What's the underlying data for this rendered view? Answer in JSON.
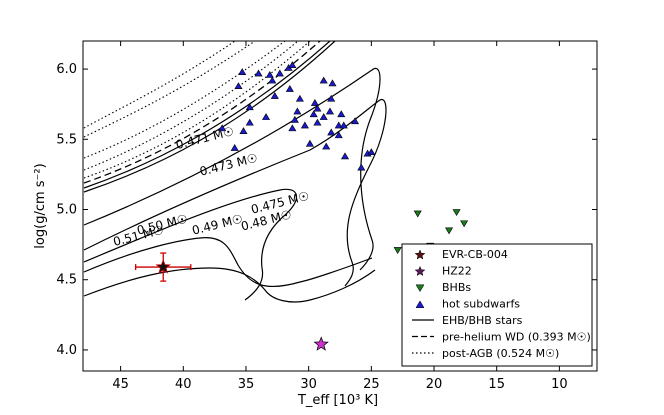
{
  "chart_data": {
    "type": "scatter",
    "xlabel": "T_eff [10³ K]",
    "ylabel": "log(g/cm s⁻²)",
    "xlim": [
      48,
      7
    ],
    "ylim": [
      6.2,
      3.85
    ],
    "x_ticks": [
      "45",
      "40",
      "35",
      "30",
      "25",
      "20",
      "15",
      "10"
    ],
    "y_ticks": [
      "4.0",
      "4.5",
      "5.0",
      "5.5",
      "6.0"
    ],
    "legend_position": "lower-right",
    "legend": [
      {
        "label": "EVR-CB-004",
        "marker": "star",
        "color": "#cc0000"
      },
      {
        "label": "HZ22",
        "marker": "star",
        "color": "#a020a0"
      },
      {
        "label": "BHBs",
        "marker": "triangle-down",
        "color": "#1a7a1a"
      },
      {
        "label": "hot subdwarfs",
        "marker": "triangle-up",
        "color": "#1a1acc"
      },
      {
        "label": "EHB/BHB stars",
        "line": "solid"
      },
      {
        "label": "pre-helium WD (0.393 M☉)",
        "line": "dashed"
      },
      {
        "label": "post-AGB (0.524 M☉)",
        "line": "dotted"
      }
    ],
    "track_labels": [
      {
        "text": "0.51 M☉",
        "x": 45.5,
        "y": 4.74
      },
      {
        "text": "0.50 M☉",
        "x": 43.6,
        "y": 4.82
      },
      {
        "text": "0.49 M☉",
        "x": 39.2,
        "y": 4.82
      },
      {
        "text": "0.48 M☉",
        "x": 35.3,
        "y": 4.85
      },
      {
        "text": "0.475 M☉",
        "x": 34.5,
        "y": 4.97
      },
      {
        "text": "0.473 M☉",
        "x": 38.6,
        "y": 5.24
      },
      {
        "text": "0.471 M☉",
        "x": 40.5,
        "y": 5.43
      }
    ],
    "evr": {
      "x": 41.6,
      "y": 4.59,
      "xerr": 2.2,
      "yerr": 0.1,
      "color": "#cc0000"
    },
    "hz22": {
      "x": 29.0,
      "y": 4.04,
      "color": "#cc33cc"
    },
    "bhbs": [
      [
        18.6,
        3.92
      ],
      [
        17.6,
        3.92
      ],
      [
        20.6,
        4.05
      ],
      [
        17.6,
        4.27
      ],
      [
        18.2,
        4.47
      ],
      [
        18.6,
        4.55
      ],
      [
        17.3,
        4.53
      ],
      [
        19.6,
        4.55
      ],
      [
        19.0,
        4.55
      ],
      [
        22.9,
        4.71
      ],
      [
        20.3,
        4.74
      ],
      [
        17.6,
        4.9
      ],
      [
        18.8,
        4.85
      ],
      [
        18.2,
        4.98
      ],
      [
        21.3,
        4.97
      ]
    ],
    "hot_subdwarfs": [
      [
        36.9,
        5.58
      ],
      [
        35.9,
        5.44
      ],
      [
        35.2,
        5.56
      ],
      [
        34.7,
        5.62
      ],
      [
        33.4,
        5.66
      ],
      [
        34.7,
        5.73
      ],
      [
        31.3,
        5.58
      ],
      [
        31.1,
        5.64
      ],
      [
        29.9,
        5.47
      ],
      [
        28.6,
        5.45
      ],
      [
        27.1,
        5.38
      ],
      [
        25.8,
        5.3
      ],
      [
        25.3,
        5.4
      ],
      [
        25.0,
        5.41
      ],
      [
        28.2,
        5.55
      ],
      [
        27.6,
        5.6
      ],
      [
        27.2,
        5.6
      ],
      [
        29.6,
        5.68
      ],
      [
        28.8,
        5.66
      ],
      [
        29.3,
        5.72
      ],
      [
        28.3,
        5.7
      ],
      [
        27.4,
        5.68
      ],
      [
        29.5,
        5.76
      ],
      [
        28.2,
        5.79
      ],
      [
        30.7,
        5.79
      ],
      [
        32.7,
        5.81
      ],
      [
        31.5,
        5.86
      ],
      [
        32.9,
        5.92
      ],
      [
        35.6,
        5.88
      ],
      [
        34.0,
        5.97
      ],
      [
        35.3,
        5.98
      ],
      [
        33.1,
        5.96
      ],
      [
        31.6,
        6.01
      ],
      [
        28.8,
        5.92
      ],
      [
        28.1,
        5.9
      ],
      [
        26.3,
        5.63
      ],
      [
        27.6,
        5.53
      ],
      [
        29.3,
        5.62
      ],
      [
        30.3,
        5.6
      ],
      [
        30.9,
        5.7
      ],
      [
        32.3,
        5.97
      ],
      [
        31.3,
        6.03
      ]
    ]
  }
}
